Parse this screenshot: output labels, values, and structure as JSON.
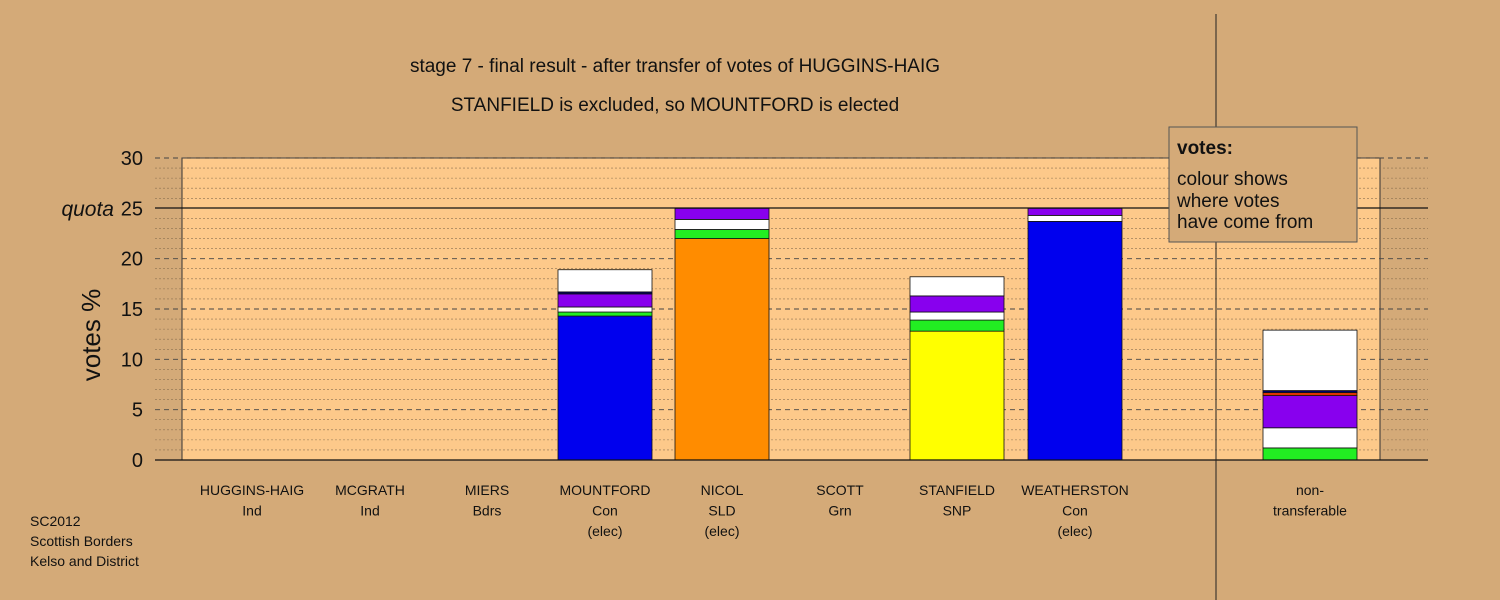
{
  "colors": {
    "background": "#d4aa78",
    "plot_area": "#fdc98a",
    "blue": "#0000ee",
    "orange": "#ff8c00",
    "yellow": "#ffff00",
    "purple": "#8800ee",
    "green": "#22ee22",
    "white": "#ffffff",
    "navy": "#000066",
    "red": "#dd3300"
  },
  "chart_data": {
    "type": "bar",
    "stacked": true,
    "title": "stage 7 - final result - after transfer of votes of HUGGINS-HAIG",
    "subtitle": "STANFIELD is excluded, so MOUNTFORD is elected",
    "ylabel": "votes %",
    "ylim": [
      0,
      30
    ],
    "yticks": [
      0,
      5,
      10,
      15,
      20,
      25,
      30
    ],
    "quota": 25,
    "quota_label": "quota",
    "grid": true,
    "legend": {
      "position": "top-right",
      "title": "votes:",
      "lines": [
        "colour shows",
        "where votes",
        "have come from"
      ]
    },
    "categories": [
      {
        "name": "HUGGINS-HAIG",
        "party": "Ind",
        "status": ""
      },
      {
        "name": "MCGRATH",
        "party": "Ind",
        "status": ""
      },
      {
        "name": "MIERS",
        "party": "Bdrs",
        "status": ""
      },
      {
        "name": "MOUNTFORD",
        "party": "Con",
        "status": "(elec)"
      },
      {
        "name": "NICOL",
        "party": "SLD",
        "status": "(elec)"
      },
      {
        "name": "SCOTT",
        "party": "Grn",
        "status": ""
      },
      {
        "name": "STANFIELD",
        "party": "SNP",
        "status": ""
      },
      {
        "name": "WEATHERSTON",
        "party": "Con",
        "status": "(elec)"
      },
      {
        "name": "non-",
        "party": "transferable",
        "status": ""
      }
    ],
    "stacks": [
      [],
      [],
      [],
      [
        {
          "color": "blue",
          "value": 14.3
        },
        {
          "color": "green",
          "value": 0.4
        },
        {
          "color": "white",
          "value": 0.5
        },
        {
          "color": "purple",
          "value": 1.3
        },
        {
          "color": "navy",
          "value": 0.2
        },
        {
          "color": "white",
          "value": 2.2
        }
      ],
      [
        {
          "color": "orange",
          "value": 22.0
        },
        {
          "color": "green",
          "value": 0.9
        },
        {
          "color": "white",
          "value": 1.0
        },
        {
          "color": "purple",
          "value": 1.1
        }
      ],
      [],
      [
        {
          "color": "yellow",
          "value": 12.8
        },
        {
          "color": "green",
          "value": 1.1
        },
        {
          "color": "white",
          "value": 0.8
        },
        {
          "color": "purple",
          "value": 1.6
        },
        {
          "color": "white",
          "value": 1.9
        }
      ],
      [
        {
          "color": "blue",
          "value": 23.7
        },
        {
          "color": "white",
          "value": 0.6
        },
        {
          "color": "purple",
          "value": 0.7
        }
      ],
      [
        {
          "color": "green",
          "value": 1.2
        },
        {
          "color": "white",
          "value": 2.0
        },
        {
          "color": "purple",
          "value": 3.2
        },
        {
          "color": "red",
          "value": 0.3
        },
        {
          "color": "navy",
          "value": 0.2
        },
        {
          "color": "white",
          "value": 6.0
        }
      ]
    ]
  },
  "footer": {
    "lines": [
      "SC2012",
      "Scottish Borders",
      "Kelso and District"
    ]
  }
}
